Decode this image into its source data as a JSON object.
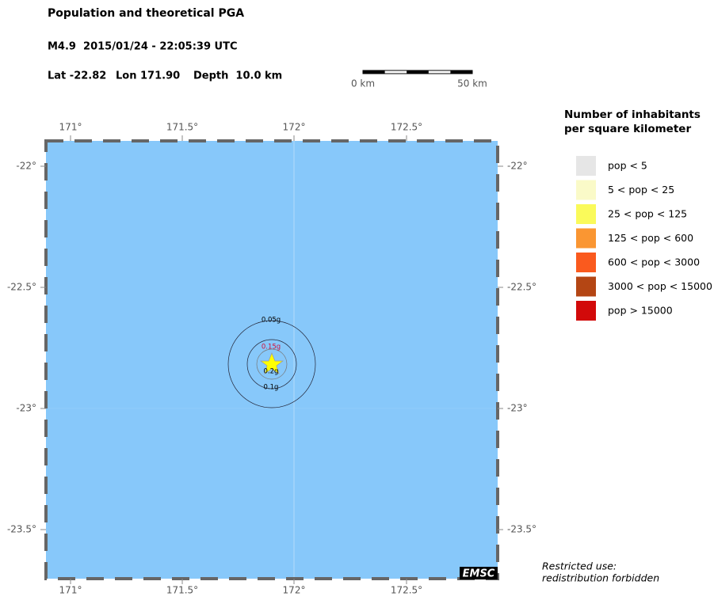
{
  "header": {
    "title": "Population and theoretical PGA",
    "event": "M4.9  2015/01/24 - 22:05:39 UTC",
    "lat": "Lat -22.82",
    "lon": "Lon 171.90",
    "depth": "Depth  10.0 km"
  },
  "scale_bar": {
    "labels": [
      "0 km",
      "50 km"
    ]
  },
  "map": {
    "x_ticks": [
      "171°",
      "171.5°",
      "172°",
      "172.5°"
    ],
    "y_ticks": [
      "-22°",
      "-22.5°",
      "-23°",
      "-23.5°"
    ],
    "contours": [
      {
        "label": "0.05g",
        "color": "#000000"
      },
      {
        "label": "0.15g",
        "color": "#d0103a"
      },
      {
        "label": "0.2g",
        "color": "#000000"
      },
      {
        "label": "0.1g",
        "color": "#000000"
      }
    ],
    "logo": "EMSC"
  },
  "legend": {
    "title": [
      "Number of inhabitants",
      "per square kilometer"
    ],
    "items": [
      {
        "label": "pop < 5",
        "color": "#e6e6e6"
      },
      {
        "label": "5 < pop < 25",
        "color": "#fafac8"
      },
      {
        "label": "25 < pop < 125",
        "color": "#fafa5a"
      },
      {
        "label": "125 < pop < 600",
        "color": "#fa9632"
      },
      {
        "label": "600 < pop < 3000",
        "color": "#fa5a1e"
      },
      {
        "label": "3000 < pop < 15000",
        "color": "#b44614"
      },
      {
        "label": "pop > 15000",
        "color": "#d20a0a"
      }
    ]
  },
  "note": [
    "Restricted use:",
    "redistribution forbidden"
  ]
}
